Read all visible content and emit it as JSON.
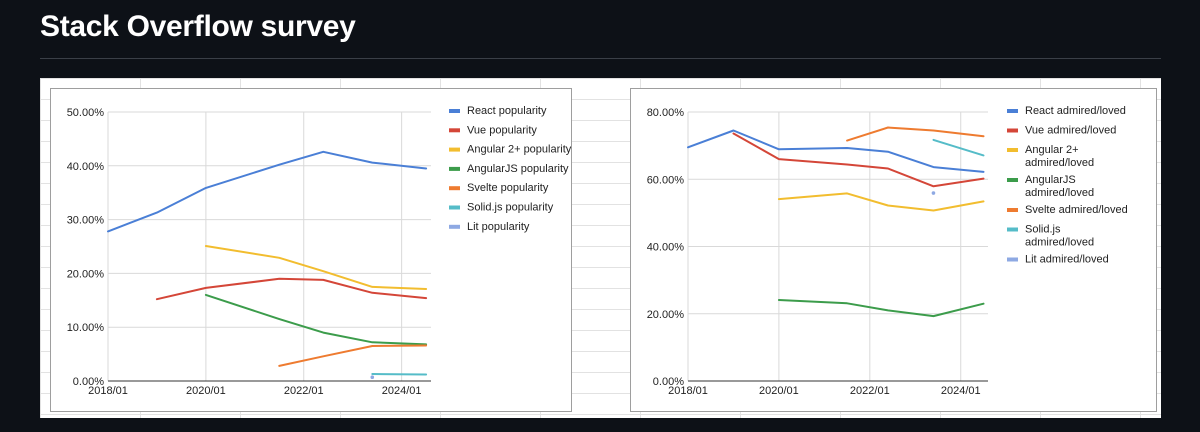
{
  "page": {
    "title": "Stack Overflow survey"
  },
  "colors": {
    "page_bg": "#0d1117",
    "react": "#4a7fd6",
    "vue": "#d44638",
    "angular2": "#f2bd2f",
    "angularjs": "#3c9c4b",
    "svelte": "#ee7b30",
    "solid": "#55bcc8",
    "lit": "#8ea9e3"
  },
  "chart_data": [
    {
      "type": "line",
      "title": "",
      "xlabel": "",
      "ylabel": "",
      "x_range": [
        2018.0,
        2024.6
      ],
      "ylim": [
        0,
        50
      ],
      "y_ticks": [
        0,
        10,
        20,
        30,
        40,
        50
      ],
      "y_tick_labels": [
        "0.00%",
        "10.00%",
        "20.00%",
        "30.00%",
        "40.00%",
        "50.00%"
      ],
      "x_ticks": [
        2018,
        2020,
        2022,
        2024
      ],
      "x_tick_labels": [
        "2018/01",
        "2020/01",
        "2022/01",
        "2024/01"
      ],
      "legend_position": "right",
      "grid": true,
      "series": [
        {
          "name": "React popularity",
          "color": "#4a7fd6",
          "points": [
            [
              2018.0,
              27.8
            ],
            [
              2019.0,
              31.3
            ],
            [
              2020.0,
              35.9
            ],
            [
              2021.5,
              40.2
            ],
            [
              2022.4,
              42.6
            ],
            [
              2023.4,
              40.6
            ],
            [
              2024.5,
              39.5
            ]
          ]
        },
        {
          "name": "Vue popularity",
          "color": "#d44638",
          "points": [
            [
              2019.0,
              15.2
            ],
            [
              2020.0,
              17.3
            ],
            [
              2021.5,
              19.0
            ],
            [
              2022.4,
              18.8
            ],
            [
              2023.4,
              16.4
            ],
            [
              2024.5,
              15.4
            ]
          ]
        },
        {
          "name": "Angular 2+ popularity",
          "color": "#f2bd2f",
          "points": [
            [
              2020.0,
              25.1
            ],
            [
              2021.5,
              22.9
            ],
            [
              2022.4,
              20.4
            ],
            [
              2023.4,
              17.5
            ],
            [
              2024.5,
              17.1
            ]
          ]
        },
        {
          "name": "AngularJS popularity",
          "color": "#3c9c4b",
          "points": [
            [
              2020.0,
              16.0
            ],
            [
              2021.5,
              11.5
            ],
            [
              2022.4,
              9.0
            ],
            [
              2023.4,
              7.2
            ],
            [
              2024.5,
              6.8
            ]
          ]
        },
        {
          "name": "Svelte popularity",
          "color": "#ee7b30",
          "points": [
            [
              2021.5,
              2.8
            ],
            [
              2022.4,
              4.6
            ],
            [
              2023.4,
              6.5
            ],
            [
              2024.5,
              6.6
            ]
          ]
        },
        {
          "name": "Solid.js popularity",
          "color": "#55bcc8",
          "points": [
            [
              2023.4,
              1.3
            ],
            [
              2024.5,
              1.2
            ]
          ]
        },
        {
          "name": "Lit popularity",
          "color": "#8ea9e3",
          "points": [
            [
              2023.4,
              0.7
            ]
          ]
        }
      ]
    },
    {
      "type": "line",
      "title": "",
      "xlabel": "",
      "ylabel": "",
      "x_range": [
        2018.0,
        2024.6
      ],
      "ylim": [
        0,
        80
      ],
      "y_ticks": [
        0,
        20,
        40,
        60,
        80
      ],
      "y_tick_labels": [
        "0.00%",
        "20.00%",
        "40.00%",
        "60.00%",
        "80.00%"
      ],
      "x_ticks": [
        2018,
        2020,
        2022,
        2024
      ],
      "x_tick_labels": [
        "2018/01",
        "2020/01",
        "2022/01",
        "2024/01"
      ],
      "legend_position": "right",
      "grid": true,
      "series": [
        {
          "name": "React admired/loved",
          "color": "#4a7fd6",
          "points": [
            [
              2018.0,
              69.5
            ],
            [
              2019.0,
              74.5
            ],
            [
              2020.0,
              68.9
            ],
            [
              2021.5,
              69.3
            ],
            [
              2022.4,
              68.2
            ],
            [
              2023.4,
              63.6
            ],
            [
              2024.5,
              62.2
            ]
          ]
        },
        {
          "name": "Vue admired/loved",
          "color": "#d44638",
          "points": [
            [
              2019.0,
              73.6
            ],
            [
              2020.0,
              66.0
            ],
            [
              2021.5,
              64.4
            ],
            [
              2022.4,
              63.2
            ],
            [
              2023.4,
              57.9
            ],
            [
              2024.5,
              60.2
            ]
          ]
        },
        {
          "name": "Angular 2+ admired/loved",
          "color": "#f2bd2f",
          "points": [
            [
              2020.0,
              54.1
            ],
            [
              2021.5,
              55.8
            ],
            [
              2022.4,
              52.2
            ],
            [
              2023.4,
              50.7
            ],
            [
              2024.5,
              53.4
            ]
          ]
        },
        {
          "name": "AngularJS admired/loved",
          "color": "#3c9c4b",
          "points": [
            [
              2020.0,
              24.1
            ],
            [
              2021.5,
              23.1
            ],
            [
              2022.4,
              21.0
            ],
            [
              2023.4,
              19.3
            ],
            [
              2024.5,
              23.0
            ]
          ]
        },
        {
          "name": "Svelte admired/loved",
          "color": "#ee7b30",
          "points": [
            [
              2021.5,
              71.5
            ],
            [
              2022.4,
              75.4
            ],
            [
              2023.4,
              74.5
            ],
            [
              2024.5,
              72.8
            ]
          ]
        },
        {
          "name": "Solid.js admired/loved",
          "color": "#55bcc8",
          "points": [
            [
              2023.4,
              71.7
            ],
            [
              2024.5,
              67.1
            ]
          ]
        },
        {
          "name": "Lit admired/loved",
          "color": "#8ea9e3",
          "points": [
            [
              2023.4,
              55.9
            ]
          ]
        }
      ]
    }
  ]
}
